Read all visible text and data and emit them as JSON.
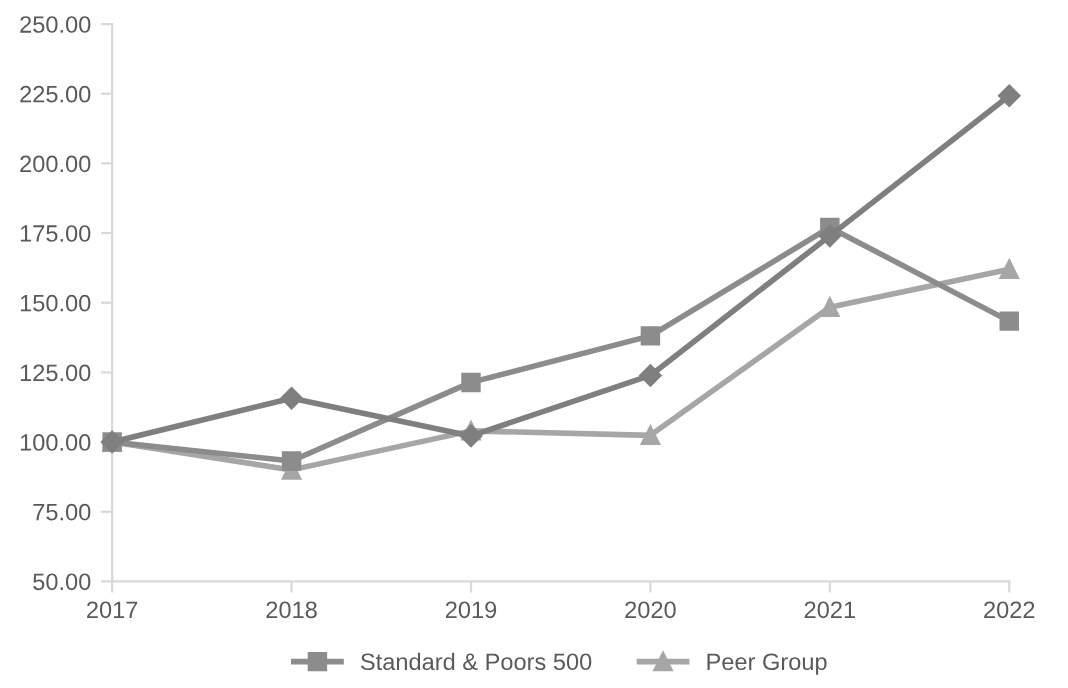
{
  "chart_data": {
    "type": "line",
    "categories": [
      "2017",
      "2018",
      "2019",
      "2020",
      "2021",
      "2022"
    ],
    "series": [
      {
        "color": "#7f7f7f",
        "marker": "diamond",
        "values": [
          100,
          115.7,
          102.2,
          123.9,
          174,
          224.3
        ]
      },
      {
        "name": "Standard & Poors 500",
        "color": "#8c8c8c",
        "marker": "square",
        "values": [
          100,
          93.2,
          121.4,
          138.1,
          177,
          143.4
        ]
      },
      {
        "name": "Peer Group",
        "color": "#a6a6a6",
        "marker": "triangle",
        "values": [
          100,
          90,
          104,
          102.4,
          148.4,
          162
        ]
      }
    ],
    "ylim": [
      50,
      250
    ],
    "yticks": [
      {
        "value": 50,
        "label": "50.00"
      },
      {
        "value": 75,
        "label": "75.00"
      },
      {
        "value": 100,
        "label": "100.00"
      },
      {
        "value": 125,
        "label": "125.00"
      },
      {
        "value": 150,
        "label": "150.00"
      },
      {
        "value": 175,
        "label": "175.00"
      },
      {
        "value": 200,
        "label": "200.00"
      },
      {
        "value": 225,
        "label": "225.00"
      },
      {
        "value": 250,
        "label": "250.00"
      }
    ],
    "legend": "bottom"
  }
}
